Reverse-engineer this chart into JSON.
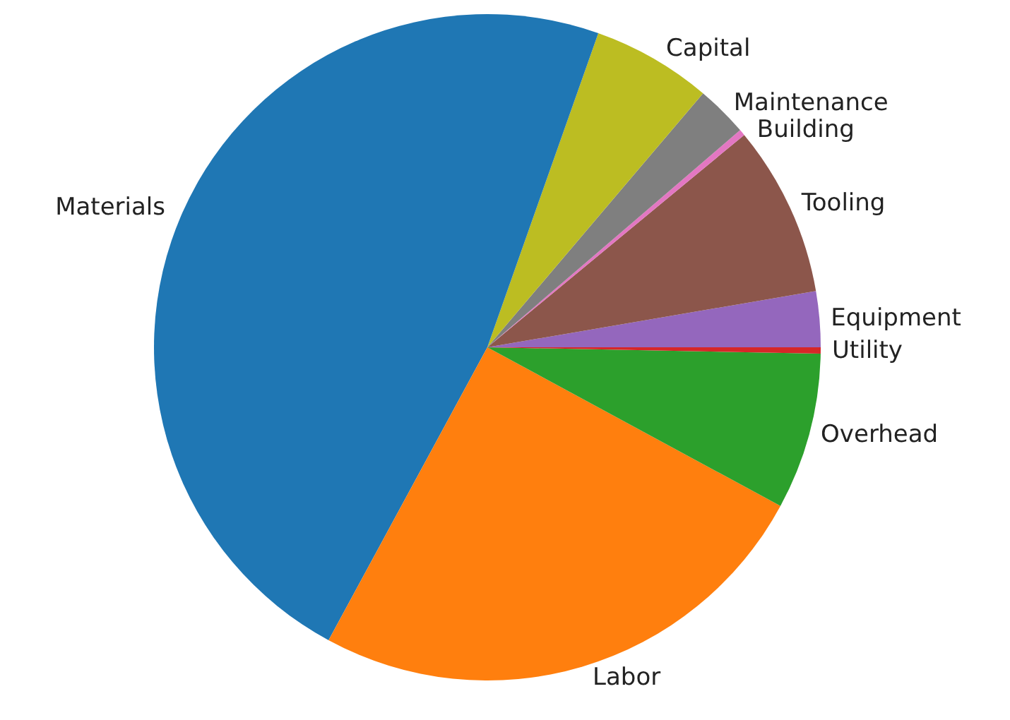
{
  "chart_data": {
    "type": "pie",
    "categories": [
      "Equipment",
      "Tooling",
      "Building",
      "Maintenance",
      "Capital",
      "Materials",
      "Labor",
      "Overhead",
      "Utility"
    ],
    "values": [
      2.7,
      8.3,
      0.3,
      2.5,
      5.8,
      47.5,
      25,
      7.6,
      0.3
    ],
    "colors": [
      "#9467bd",
      "#8c564b",
      "#e377c2",
      "#7f7f7f",
      "#bcbd22",
      "#1f77b4",
      "#ff7f0e",
      "#2ca02c",
      "#d62728"
    ],
    "legend": false
  }
}
